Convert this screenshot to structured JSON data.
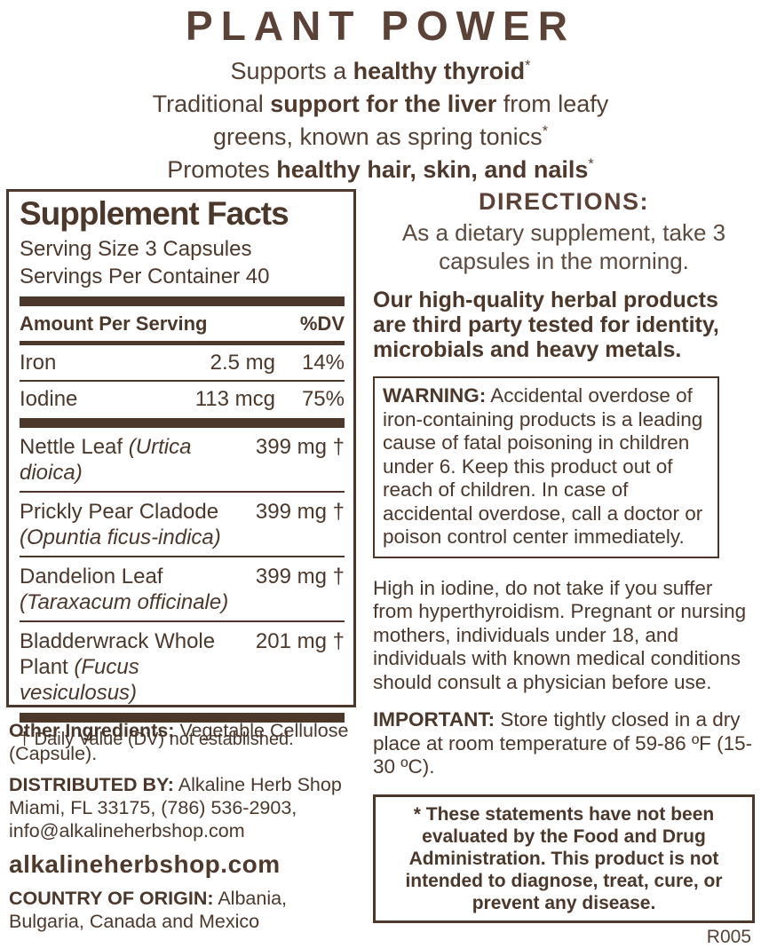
{
  "colors": {
    "brown_dark": "#4c372b",
    "brown_headline": "#5b4136",
    "background": "#ffffff"
  },
  "header": {
    "title": "PLANT POWER",
    "benefit_lines": [
      [
        {
          "t": "Supports a "
        },
        {
          "t": "healthy thyroid",
          "b": 1
        },
        {
          "t": "*",
          "sup": 1
        }
      ],
      [
        {
          "t": "Traditional "
        },
        {
          "t": "support for the liver",
          "b": 1
        },
        {
          "t": " from leafy"
        }
      ],
      [
        {
          "t": "greens, known as spring tonics"
        },
        {
          "t": "*",
          "sup": 1
        }
      ],
      [
        {
          "t": "Promotes "
        },
        {
          "t": "healthy hair, skin, and nails",
          "b": 1
        },
        {
          "t": "*",
          "sup": 1
        }
      ]
    ]
  },
  "supplement_facts": {
    "title": "Supplement Facts",
    "serving_size": "Serving Size 3 Capsules",
    "servings_per_container": "Servings Per Container 40",
    "columns": {
      "amount_per_serving": "Amount Per Serving",
      "dv": "%DV"
    },
    "minerals": [
      {
        "name": "Iron",
        "amount": "2.5 mg",
        "dv": "14%"
      },
      {
        "name": "Iodine",
        "amount": "113 mcg",
        "dv": "75%"
      }
    ],
    "herbs": [
      {
        "name": "Nettle Leaf",
        "latin": "(Urtica dioica)",
        "amount": "399 mg",
        "dagger": "†"
      },
      {
        "name": "Prickly Pear Cladode",
        "latin": "(Opuntia ficus-indica)",
        "amount": "399 mg",
        "dagger": "†"
      },
      {
        "name": "Dandelion Leaf",
        "latin": "(Taraxacum officinale)",
        "amount": "399 mg",
        "dagger": "†"
      },
      {
        "name": "Bladderwrack Whole Plant",
        "latin": "(Fucus vesiculosus)",
        "amount": "201 mg",
        "dagger": "†"
      }
    ],
    "footnote": "† Daily Value (DV) not established."
  },
  "left_column": {
    "other_ingredients": {
      "lead": "Other Ingredients:",
      "text": "Vegetable Cellulose (Capsule)."
    },
    "distributed_by": {
      "lead": "DISTRIBUTED BY:",
      "text": "Alkaline Herb Shop Miami, FL 33175, (786) 536-2903, info@alkalineherbshop.com"
    },
    "website": "alkalineherbshop.com",
    "country_of_origin": {
      "lead": "COUNTRY OF ORIGIN:",
      "text": "Albania, Bulgaria, Canada and Mexico"
    }
  },
  "right_column": {
    "directions": {
      "heading": "DIRECTIONS:",
      "text": "As a dietary supplement, take 3 capsules in the morning."
    },
    "quality_statement": "Our high-quality herbal products are third party tested for identity, microbials and heavy metals.",
    "warning": {
      "lead": "WARNING:",
      "text": "Accidental overdose of iron-containing products is a leading cause of fatal poisoning in children under 6. Keep this product out of reach of children. In case of accidental overdose, call a doctor or poison control center immediately."
    },
    "iodine_notice": "High in iodine, do not take if you suffer from hyperthyroidism. Pregnant or nursing mothers, individuals under 18, and individuals with known medical conditions should consult a physician before use.",
    "important": {
      "lead": "IMPORTANT:",
      "text": "Store tightly closed in a dry place at room temperature of 59-86 ºF (15-30 ºC)."
    },
    "fda_disclaimer": "* These statements have not been evaluated by the Food and Drug Administration. This product is not intended to diagnose, treat, cure, or prevent any disease.",
    "revision_code": "R005"
  }
}
